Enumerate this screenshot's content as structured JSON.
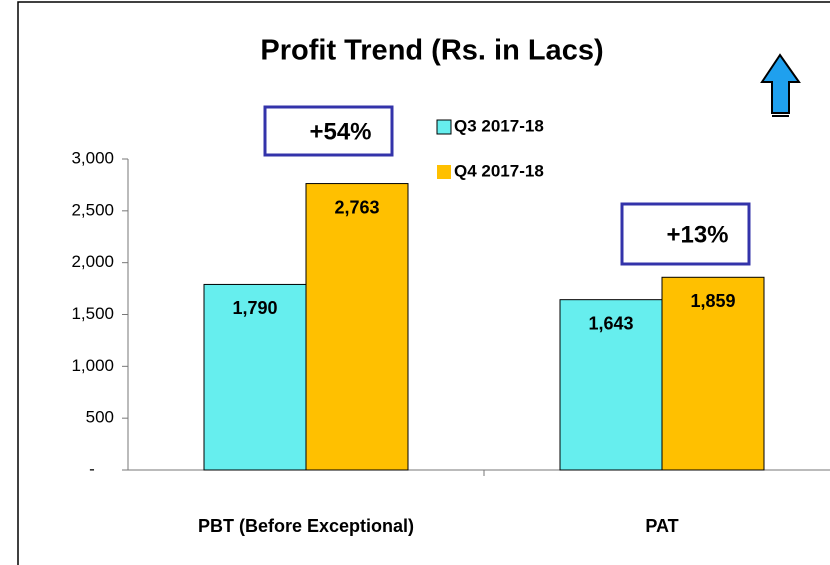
{
  "chart_data": {
    "type": "bar",
    "title": "Profit Trend (Rs. in Lacs)",
    "categories": [
      "PBT (Before Exceptional)",
      "PAT"
    ],
    "series": [
      {
        "name": "Q3 2017-18",
        "color": "#66eeee",
        "values": [
          1790,
          1643
        ],
        "value_labels": [
          "1,790",
          "1,643"
        ]
      },
      {
        "name": "Q4 2017-18",
        "color": "#ffc000",
        "values": [
          2763,
          1859
        ],
        "value_labels": [
          "2,763",
          "1,859"
        ]
      }
    ],
    "ylim": [
      0,
      3000
    ],
    "yticks": [
      {
        "value": 0,
        "label": "-"
      },
      500,
      {
        "value": 1000,
        "label": "1,000"
      },
      {
        "value": 1500,
        "label": "1,500"
      },
      {
        "value": 2000,
        "label": "2,000"
      },
      {
        "value": 2500,
        "label": "2,500"
      },
      {
        "value": 3000,
        "label": "3,000"
      }
    ],
    "annotations": [
      "+54%",
      "+13%"
    ],
    "grid": false
  }
}
